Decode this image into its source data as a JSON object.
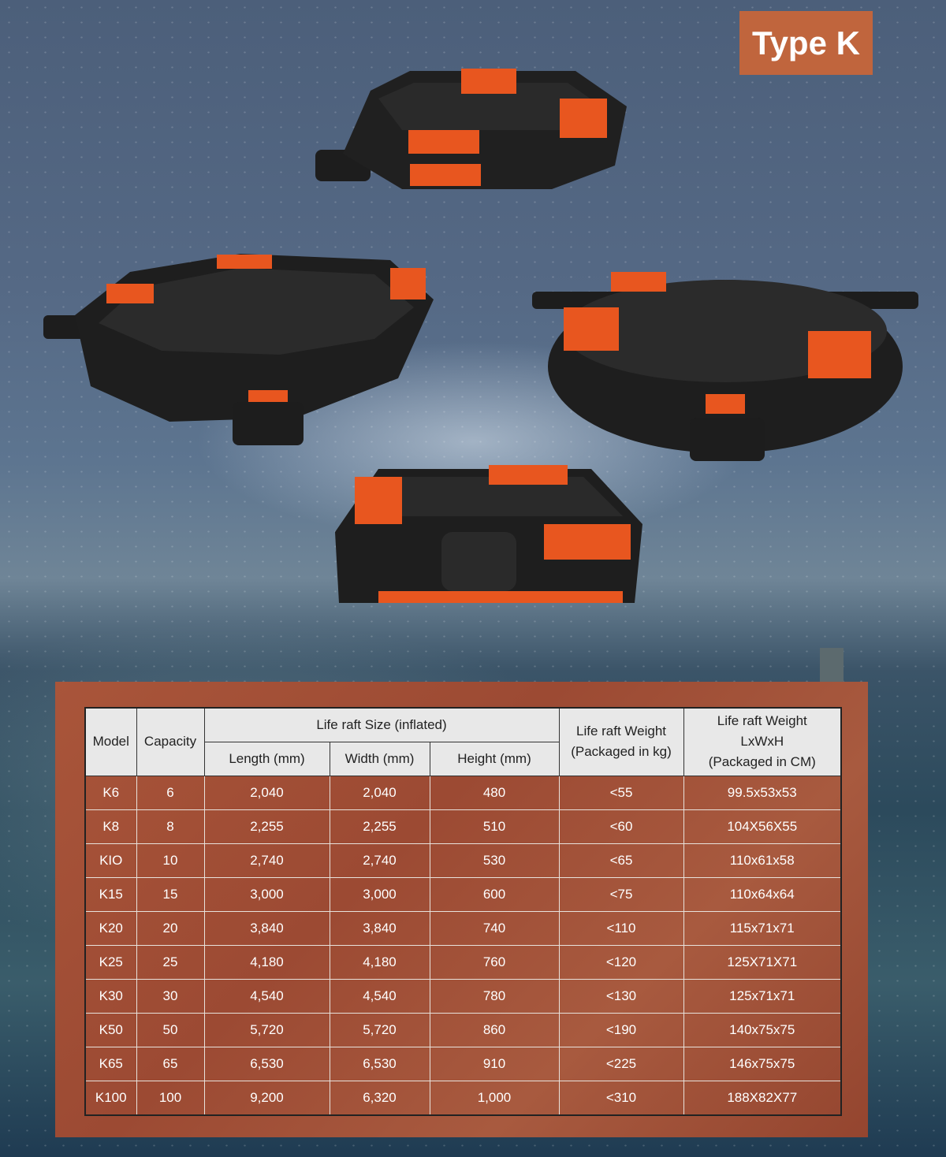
{
  "title": "Type K",
  "colors": {
    "accent": "#c0653d",
    "table_bg": "#a25139",
    "header_bg": "#e8e8e8"
  },
  "table": {
    "headers": {
      "model": "Model",
      "capacity": "Capacity",
      "size_group": "Life raft Size (inflated)",
      "length": "Length (mm)",
      "width": "Width (mm)",
      "height": "Height (mm)",
      "weight_kg_l1": "Life raft Weight",
      "weight_kg_l2": "(Packaged in kg)",
      "dims_l1": "Life raft Weight",
      "dims_l2": "LxWxH",
      "dims_l3": "(Packaged in CM)"
    },
    "rows": [
      [
        "K6",
        "6",
        "2,040",
        "2,040",
        "480",
        "<55",
        "99.5x53x53"
      ],
      [
        "K8",
        "8",
        "2,255",
        "2,255",
        "510",
        "<60",
        "104X56X55"
      ],
      [
        "KIO",
        "10",
        "2,740",
        "2,740",
        "530",
        "<65",
        "110x61x58"
      ],
      [
        "K15",
        "15",
        "3,000",
        "3,000",
        "600",
        "<75",
        "110x64x64"
      ],
      [
        "K20",
        "20",
        "3,840",
        "3,840",
        "740",
        "<110",
        "115x71x71"
      ],
      [
        "K25",
        "25",
        "4,180",
        "4,180",
        "760",
        "<120",
        "125X71X71"
      ],
      [
        "K30",
        "30",
        "4,540",
        "4,540",
        "780",
        "<130",
        "125x71x71"
      ],
      [
        "K50",
        "50",
        "5,720",
        "5,720",
        "860",
        "<190",
        "140x75x75"
      ],
      [
        "K65",
        "65",
        "6,530",
        "6,530",
        "910",
        "<225",
        "146x75x75"
      ],
      [
        "K100",
        "100",
        "9,200",
        "6,320",
        "1,000",
        "<310",
        "188X82X77"
      ]
    ]
  }
}
